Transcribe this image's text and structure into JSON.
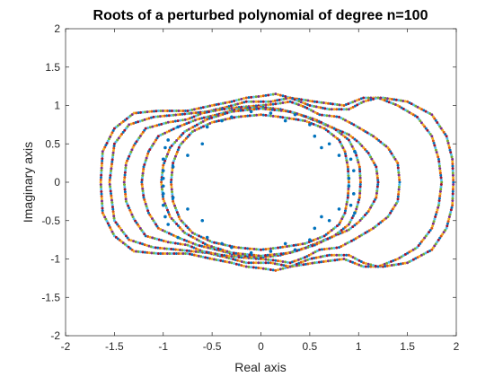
{
  "chart_data": {
    "type": "scatter",
    "title": "Roots of a perturbed polynomial of degree n=100",
    "xlabel": "Real axis",
    "ylabel": "Imaginary axis",
    "xlim": [
      -2,
      2
    ],
    "ylim": [
      -2,
      2
    ],
    "x_ticks": [
      -2,
      -1.5,
      -1,
      -0.5,
      0,
      0.5,
      1,
      1.5,
      2
    ],
    "y_ticks": [
      -2,
      -1.5,
      -1,
      -0.5,
      0,
      0.5,
      1,
      1.5,
      2
    ],
    "x_tick_labels": [
      "-2",
      "-1.5",
      "-1",
      "-0.5",
      "0",
      "0.5",
      "1",
      "1.5",
      "2"
    ],
    "y_tick_labels": [
      "-2",
      "-1.5",
      "-1",
      "-0.5",
      "0",
      "0.5",
      "1",
      "1.5",
      "2"
    ],
    "grid": false,
    "legend": false,
    "colors": [
      "#0072BD",
      "#D95319",
      "#EDB120",
      "#7E2F8E",
      "#77AC30",
      "#4DBEEE",
      "#A2142F"
    ],
    "series": [
      {
        "style": "dense-dotted-curves",
        "points": [
          [
            1.97,
            0.0
          ],
          [
            1.96,
            0.3
          ],
          [
            1.9,
            0.6
          ],
          [
            1.75,
            0.88
          ],
          [
            1.5,
            1.05
          ],
          [
            1.25,
            1.1
          ],
          [
            1.05,
            1.1
          ],
          [
            0.85,
            1.0
          ],
          [
            0.55,
            1.05
          ],
          [
            0.3,
            1.1
          ],
          [
            0.15,
            1.15
          ],
          [
            0.0,
            1.12
          ],
          [
            -0.15,
            1.1
          ],
          [
            -0.3,
            1.05
          ],
          [
            -0.5,
            1.0
          ],
          [
            -0.75,
            0.93
          ],
          [
            -1.05,
            0.93
          ],
          [
            -1.3,
            0.9
          ],
          [
            -1.5,
            0.7
          ],
          [
            -1.62,
            0.4
          ],
          [
            -1.64,
            0.0
          ],
          [
            -1.62,
            -0.4
          ],
          [
            -1.5,
            -0.7
          ],
          [
            -1.3,
            -0.9
          ],
          [
            -1.05,
            -0.93
          ],
          [
            -0.75,
            -0.93
          ],
          [
            -0.5,
            -1.0
          ],
          [
            -0.3,
            -1.05
          ],
          [
            -0.15,
            -1.1
          ],
          [
            0.0,
            -1.12
          ],
          [
            0.15,
            -1.15
          ],
          [
            0.3,
            -1.1
          ],
          [
            0.55,
            -1.05
          ],
          [
            0.85,
            -1.0
          ],
          [
            1.05,
            -1.1
          ],
          [
            1.25,
            -1.1
          ],
          [
            1.5,
            -1.05
          ],
          [
            1.75,
            -0.88
          ],
          [
            1.9,
            -0.6
          ],
          [
            1.96,
            -0.3
          ],
          [
            1.97,
            0.0
          ],
          [
            1.85,
            0.0
          ],
          [
            1.82,
            0.3
          ],
          [
            1.75,
            0.6
          ],
          [
            1.6,
            0.85
          ],
          [
            1.4,
            1.0
          ],
          [
            1.2,
            1.1
          ],
          [
            1.05,
            1.05
          ],
          [
            0.9,
            0.95
          ],
          [
            0.7,
            0.95
          ],
          [
            0.5,
            1.0
          ],
          [
            0.3,
            1.1
          ],
          [
            0.1,
            1.05
          ],
          [
            -0.15,
            1.05
          ],
          [
            -0.35,
            0.98
          ],
          [
            -0.55,
            0.92
          ],
          [
            -0.85,
            0.88
          ],
          [
            -1.1,
            0.85
          ],
          [
            -1.35,
            0.75
          ],
          [
            -1.5,
            0.5
          ],
          [
            -1.55,
            0.0
          ],
          [
            -1.5,
            -0.5
          ],
          [
            -1.35,
            -0.75
          ],
          [
            -1.1,
            -0.85
          ],
          [
            -0.85,
            -0.88
          ],
          [
            -0.55,
            -0.92
          ],
          [
            -0.35,
            -0.98
          ],
          [
            -0.15,
            -1.05
          ],
          [
            0.1,
            -1.05
          ],
          [
            0.3,
            -1.1
          ],
          [
            0.5,
            -1.0
          ],
          [
            0.7,
            -0.95
          ],
          [
            0.9,
            -0.95
          ],
          [
            1.05,
            -1.05
          ],
          [
            1.2,
            -1.1
          ],
          [
            1.4,
            -1.0
          ],
          [
            1.6,
            -0.85
          ],
          [
            1.75,
            -0.6
          ],
          [
            1.82,
            -0.3
          ],
          [
            1.85,
            0.0
          ],
          [
            1.42,
            0.0
          ],
          [
            1.4,
            0.25
          ],
          [
            1.3,
            0.45
          ],
          [
            1.15,
            0.6
          ],
          [
            0.95,
            0.75
          ],
          [
            0.8,
            0.85
          ],
          [
            0.6,
            0.88
          ],
          [
            0.45,
            0.98
          ],
          [
            0.3,
            1.05
          ],
          [
            0.15,
            1.02
          ],
          [
            0.0,
            1.0
          ],
          [
            -0.2,
            0.98
          ],
          [
            -0.4,
            0.95
          ],
          [
            -0.6,
            0.9
          ],
          [
            -0.75,
            0.82
          ],
          [
            -0.95,
            0.78
          ],
          [
            -1.18,
            0.7
          ],
          [
            -1.3,
            0.48
          ],
          [
            -1.38,
            0.25
          ],
          [
            -1.4,
            0.0
          ],
          [
            -1.38,
            -0.25
          ],
          [
            -1.3,
            -0.48
          ],
          [
            -1.18,
            -0.7
          ],
          [
            -0.95,
            -0.78
          ],
          [
            -0.75,
            -0.82
          ],
          [
            -0.6,
            -0.9
          ],
          [
            -0.4,
            -0.95
          ],
          [
            -0.2,
            -0.98
          ],
          [
            0.0,
            -1.0
          ],
          [
            0.15,
            -1.02
          ],
          [
            0.3,
            -1.05
          ],
          [
            0.45,
            -0.98
          ],
          [
            0.6,
            -0.88
          ],
          [
            0.8,
            -0.85
          ],
          [
            0.95,
            -0.75
          ],
          [
            1.15,
            -0.6
          ],
          [
            1.3,
            -0.45
          ],
          [
            1.4,
            -0.25
          ],
          [
            1.42,
            0.0
          ],
          [
            1.2,
            0.0
          ],
          [
            1.18,
            0.2
          ],
          [
            1.1,
            0.38
          ],
          [
            1.0,
            0.52
          ],
          [
            0.9,
            0.62
          ],
          [
            0.75,
            0.7
          ],
          [
            0.6,
            0.78
          ],
          [
            0.4,
            0.88
          ],
          [
            0.2,
            0.95
          ],
          [
            0.0,
            0.98
          ],
          [
            -0.25,
            0.95
          ],
          [
            -0.45,
            0.88
          ],
          [
            -0.65,
            0.82
          ],
          [
            -0.85,
            0.72
          ],
          [
            -1.05,
            0.6
          ],
          [
            -1.15,
            0.4
          ],
          [
            -1.2,
            0.2
          ],
          [
            -1.22,
            0.0
          ],
          [
            -1.2,
            -0.2
          ],
          [
            -1.15,
            -0.4
          ],
          [
            -1.05,
            -0.6
          ],
          [
            -0.85,
            -0.72
          ],
          [
            -0.65,
            -0.82
          ],
          [
            -0.45,
            -0.88
          ],
          [
            -0.25,
            -0.95
          ],
          [
            0.0,
            -0.98
          ],
          [
            0.2,
            -0.95
          ],
          [
            0.4,
            -0.88
          ],
          [
            0.6,
            -0.78
          ],
          [
            0.75,
            -0.7
          ],
          [
            0.9,
            -0.62
          ],
          [
            1.0,
            -0.52
          ],
          [
            1.1,
            -0.38
          ],
          [
            1.18,
            -0.2
          ],
          [
            1.2,
            0.0
          ],
          [
            1.02,
            0.0
          ],
          [
            1.01,
            0.2
          ],
          [
            0.97,
            0.38
          ],
          [
            0.9,
            0.55
          ],
          [
            0.75,
            0.7
          ],
          [
            0.55,
            0.82
          ],
          [
            0.3,
            0.92
          ],
          [
            0.0,
            0.96
          ],
          [
            -0.3,
            0.92
          ],
          [
            -0.55,
            0.82
          ],
          [
            -0.78,
            0.66
          ],
          [
            -0.93,
            0.45
          ],
          [
            -1.0,
            0.22
          ],
          [
            -1.02,
            0.0
          ],
          [
            -1.0,
            -0.22
          ],
          [
            -0.93,
            -0.45
          ],
          [
            -0.78,
            -0.66
          ],
          [
            -0.55,
            -0.82
          ],
          [
            -0.3,
            -0.92
          ],
          [
            0.0,
            -0.96
          ],
          [
            0.3,
            -0.92
          ],
          [
            0.55,
            -0.82
          ],
          [
            0.75,
            -0.7
          ],
          [
            0.9,
            -0.55
          ],
          [
            0.97,
            -0.38
          ],
          [
            1.01,
            -0.2
          ],
          [
            1.02,
            0.0
          ],
          [
            0.9,
            0.0
          ],
          [
            0.89,
            0.2
          ],
          [
            0.86,
            0.4
          ],
          [
            0.8,
            0.55
          ],
          [
            0.65,
            0.7
          ],
          [
            0.45,
            0.8
          ],
          [
            0.2,
            0.85
          ],
          [
            0.0,
            0.88
          ],
          [
            -0.25,
            0.85
          ],
          [
            -0.5,
            0.78
          ],
          [
            -0.7,
            0.66
          ],
          [
            -0.83,
            0.48
          ],
          [
            -0.9,
            0.25
          ],
          [
            -0.92,
            0.0
          ],
          [
            -0.9,
            -0.25
          ],
          [
            -0.83,
            -0.48
          ],
          [
            -0.7,
            -0.66
          ],
          [
            -0.5,
            -0.78
          ],
          [
            -0.25,
            -0.85
          ],
          [
            0.0,
            -0.88
          ],
          [
            0.2,
            -0.85
          ],
          [
            0.45,
            -0.8
          ],
          [
            0.65,
            -0.7
          ],
          [
            0.8,
            -0.55
          ],
          [
            0.86,
            -0.4
          ],
          [
            0.89,
            -0.2
          ],
          [
            0.9,
            0.0
          ]
        ]
      },
      {
        "style": "scattered-blue-dots",
        "points": [
          [
            -1.0,
            0.05
          ],
          [
            -1.0,
            -0.05
          ],
          [
            -1.0,
            0.15
          ],
          [
            -1.0,
            -0.15
          ],
          [
            -1.0,
            0.3
          ],
          [
            -1.0,
            -0.3
          ],
          [
            -0.98,
            0.45
          ],
          [
            -0.98,
            -0.45
          ],
          [
            -0.95,
            0.55
          ],
          [
            -0.95,
            -0.55
          ],
          [
            -0.75,
            0.35
          ],
          [
            -0.75,
            -0.35
          ],
          [
            -0.6,
            0.5
          ],
          [
            -0.6,
            -0.5
          ],
          [
            -0.55,
            0.72
          ],
          [
            -0.55,
            -0.72
          ],
          [
            -0.4,
            0.8
          ],
          [
            -0.4,
            -0.8
          ],
          [
            -0.3,
            0.85
          ],
          [
            -0.3,
            -0.85
          ],
          [
            -0.1,
            0.92
          ],
          [
            -0.1,
            -0.92
          ],
          [
            0.1,
            0.9
          ],
          [
            0.1,
            -0.9
          ],
          [
            0.25,
            0.8
          ],
          [
            0.25,
            -0.8
          ],
          [
            0.35,
            0.88
          ],
          [
            0.35,
            -0.88
          ],
          [
            0.5,
            0.75
          ],
          [
            0.5,
            -0.75
          ],
          [
            0.55,
            0.6
          ],
          [
            0.55,
            -0.6
          ],
          [
            0.62,
            0.45
          ],
          [
            0.62,
            -0.45
          ],
          [
            0.7,
            0.5
          ],
          [
            0.7,
            -0.5
          ],
          [
            0.8,
            0.35
          ],
          [
            0.8,
            -0.35
          ],
          [
            0.9,
            0.05
          ],
          [
            0.9,
            -0.05
          ],
          [
            0.95,
            0.15
          ],
          [
            0.95,
            -0.15
          ],
          [
            0.92,
            0.3
          ],
          [
            0.92,
            -0.3
          ],
          [
            0.96,
            0.4
          ],
          [
            0.96,
            -0.4
          ],
          [
            -0.85,
            0.72
          ],
          [
            -0.85,
            -0.72
          ],
          [
            -0.9,
            0.2
          ],
          [
            -0.9,
            -0.2
          ]
        ]
      }
    ]
  }
}
